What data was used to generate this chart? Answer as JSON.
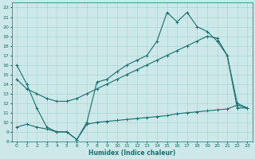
{
  "xlabel": "Humidex (Indice chaleur)",
  "bg_color": "#cce8e8",
  "line_color": "#1a6e6e",
  "ylim": [
    8,
    22.5
  ],
  "xlim": [
    -0.5,
    23.5
  ],
  "yticks": [
    8,
    9,
    10,
    11,
    12,
    13,
    14,
    15,
    16,
    17,
    18,
    19,
    20,
    21,
    22
  ],
  "xticks": [
    0,
    1,
    2,
    3,
    4,
    5,
    6,
    7,
    8,
    9,
    10,
    11,
    12,
    13,
    14,
    15,
    16,
    17,
    18,
    19,
    20,
    21,
    22,
    23
  ],
  "series": [
    {
      "x": [
        0,
        1,
        2,
        3,
        4,
        5,
        6,
        7,
        8,
        9,
        10,
        11,
        12,
        13,
        14,
        15,
        16,
        17,
        18,
        19,
        20,
        21,
        22,
        23
      ],
      "y": [
        16.0,
        14.0,
        11.5,
        9.5,
        9.0,
        9.0,
        8.2,
        10.0,
        14.2,
        14.5,
        15.3,
        16.0,
        16.5,
        17.0,
        18.5,
        21.5,
        20.5,
        21.5,
        20.0,
        19.5,
        18.5,
        17.0,
        12.0,
        11.5
      ]
    },
    {
      "x": [
        0,
        1,
        2,
        3,
        4,
        5,
        6,
        7,
        8,
        9,
        10,
        11,
        12,
        13,
        14,
        15,
        16,
        17,
        18,
        19,
        20,
        21,
        22,
        23
      ],
      "y": [
        14.5,
        13.5,
        13.0,
        12.5,
        12.2,
        12.2,
        12.5,
        13.0,
        13.5,
        14.0,
        14.5,
        15.0,
        15.5,
        16.0,
        16.5,
        17.0,
        17.5,
        18.0,
        18.5,
        19.0,
        18.8,
        17.0,
        11.5,
        11.5
      ]
    },
    {
      "x": [
        0,
        1,
        2,
        3,
        4,
        5,
        6,
        7,
        8,
        9,
        10,
        11,
        12,
        13,
        14,
        15,
        16,
        17,
        18,
        19,
        20,
        21,
        22,
        23
      ],
      "y": [
        9.5,
        9.8,
        9.5,
        9.3,
        9.0,
        9.0,
        8.2,
        9.8,
        10.0,
        10.1,
        10.2,
        10.3,
        10.4,
        10.5,
        10.6,
        10.7,
        10.9,
        11.0,
        11.1,
        11.2,
        11.3,
        11.4,
        11.8,
        11.5
      ]
    }
  ]
}
